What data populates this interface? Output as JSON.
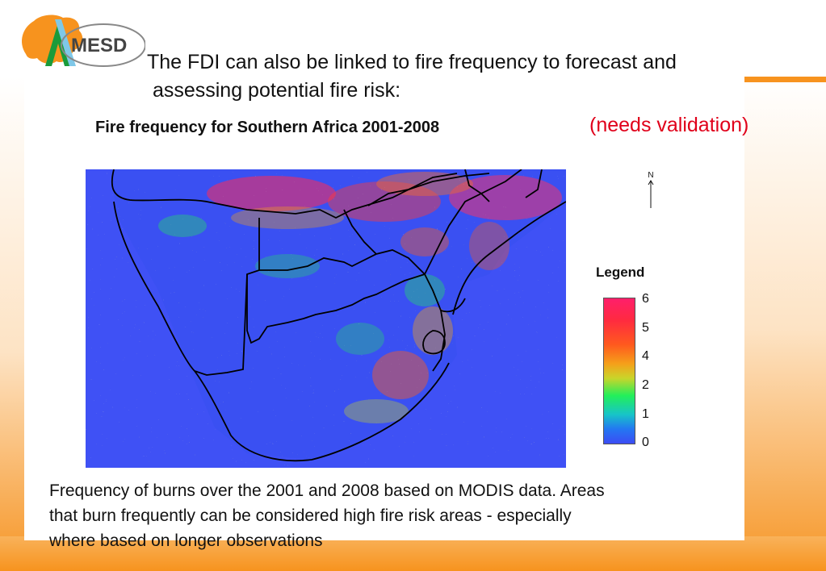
{
  "header": {
    "logo_text": "MESD",
    "line1": "The FDI can also be linked to fire frequency to forecast and",
    "line2": " assessing potential fire risk:",
    "note": "(needs validation)"
  },
  "map": {
    "title": "Fire frequency for Southern Africa 2001-2008",
    "north_label": "N",
    "background_color": "#3f51f5"
  },
  "legend": {
    "title": "Legend",
    "ticks": [
      "6",
      "5",
      "4",
      "2",
      "1",
      "0"
    ],
    "colors": {
      "high": "#ff1f6b",
      "mid": "#f5a01a",
      "green": "#22ef5a",
      "low": "#3c4cf4"
    }
  },
  "caption": {
    "line1": "Frequency of burns over the 2001 and 2008 based on MODIS data. Areas",
    "line2": "that burn frequently can be considered high fire risk areas  - especially",
    "line3": "where based on longer observations"
  }
}
